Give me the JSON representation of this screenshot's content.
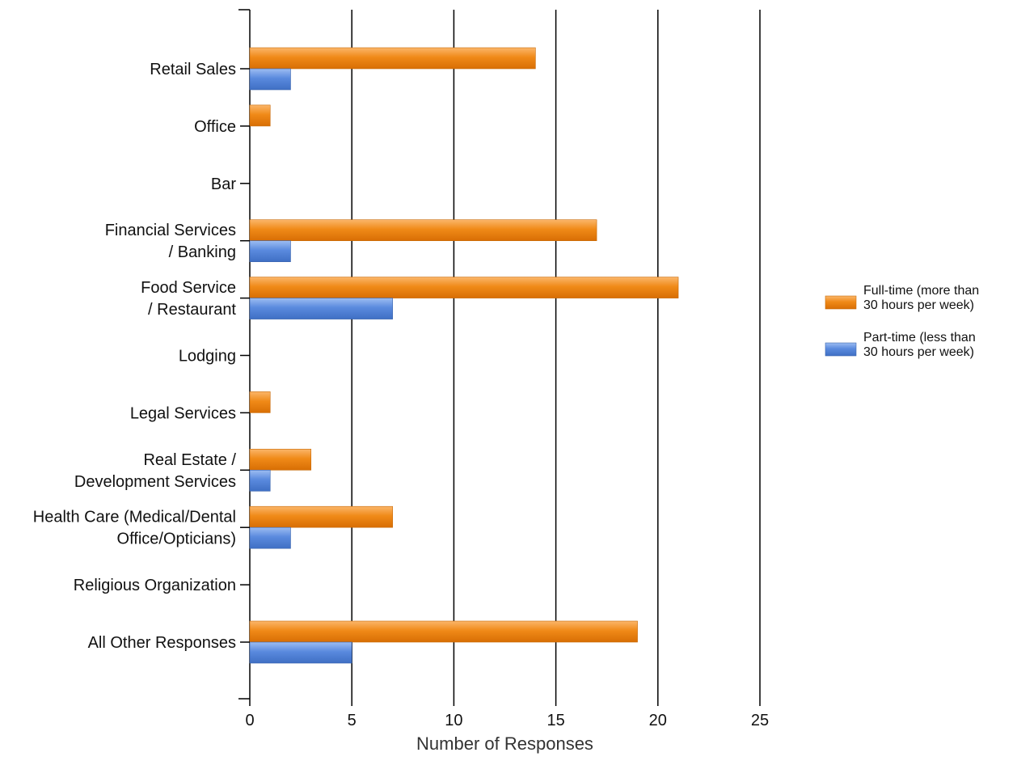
{
  "chart_data": {
    "type": "bar",
    "orientation": "horizontal",
    "categories": [
      [
        "Retail Sales"
      ],
      [
        "Office"
      ],
      [
        "Bar"
      ],
      [
        "Financial Services",
        "/ Banking"
      ],
      [
        "Food Service",
        "/ Restaurant"
      ],
      [
        "Lodging"
      ],
      [
        "Legal Services"
      ],
      [
        "Real Estate /",
        "Development Services"
      ],
      [
        "Health Care (Medical/Dental",
        "Office/Opticians)"
      ],
      [
        "Religious Organization"
      ],
      [
        "All Other Responses"
      ]
    ],
    "series": [
      {
        "name": [
          "Full-time (more than",
          "30 hours per week)"
        ],
        "color": "#f07f09",
        "values": [
          14,
          1,
          0,
          17,
          21,
          0,
          1,
          3,
          7,
          0,
          19
        ]
      },
      {
        "name": [
          "Part-time (less than",
          "30 hours per week)"
        ],
        "color": "#4f81d6",
        "values": [
          2,
          0,
          0,
          2,
          7,
          0,
          0,
          1,
          2,
          0,
          5
        ]
      }
    ],
    "xlabel": "Number of Responses",
    "xlim": [
      0,
      25
    ],
    "xticks": [
      "0",
      "5",
      "10",
      "15",
      "20",
      "25"
    ],
    "grid": "vertical",
    "legend": "right"
  }
}
